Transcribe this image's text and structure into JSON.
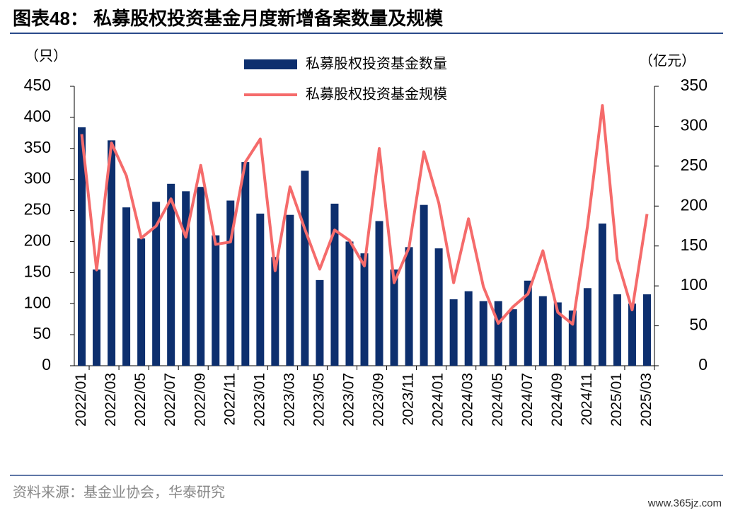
{
  "chart_data": {
    "type": "bar-line",
    "title": "图表48：  私募股权投资基金月度新增备案数量及规模",
    "ylabel": "（只）",
    "y2label": "（亿元）",
    "source": "资料来源：基金业协会，华泰研究",
    "watermark": "www.365jz.com",
    "categories": [
      "2022/01",
      null,
      "2022/03",
      null,
      "2022/05",
      null,
      "2022/07",
      null,
      "2022/09",
      null,
      "2022/11",
      null,
      "2023/01",
      null,
      "2023/03",
      null,
      "2023/05",
      null,
      "2023/07",
      null,
      "2023/09",
      null,
      "2023/11",
      null,
      "2024/01",
      null,
      "2024/03",
      null,
      "2024/05",
      null,
      "2024/07",
      null,
      "2024/09",
      null,
      "2024/11",
      null,
      "2025/01",
      null,
      "2025/03"
    ],
    "series": [
      {
        "name": "私募股权投资基金数量",
        "type": "bar",
        "color": "#0d2f6e",
        "values": [
          384,
          155,
          363,
          255,
          205,
          264,
          293,
          281,
          288,
          210,
          266,
          328,
          245,
          175,
          243,
          314,
          138,
          261,
          200,
          181,
          233,
          155,
          191,
          259,
          189,
          107,
          120,
          104,
          104,
          91,
          137,
          112,
          102,
          89,
          125,
          229,
          115,
          100,
          115
        ]
      },
      {
        "name": "私募股权投资基金规模",
        "type": "line",
        "axis": "y2",
        "color": "#f56b6b",
        "values": [
          290,
          120,
          279,
          238,
          160,
          175,
          209,
          161,
          251,
          152,
          155,
          255,
          284,
          119,
          224,
          171,
          121,
          170,
          157,
          125,
          272,
          104,
          148,
          268,
          204,
          104,
          184,
          99,
          53,
          74,
          90,
          144,
          67,
          52,
          175,
          326,
          133,
          70,
          190
        ]
      }
    ],
    "ylim": [
      0,
      450
    ],
    "yticks": [
      0,
      50,
      100,
      150,
      200,
      250,
      300,
      350,
      400,
      450
    ],
    "y2lim": [
      0,
      350
    ],
    "y2ticks": [
      0,
      50,
      100,
      150,
      200,
      250,
      300,
      350
    ]
  }
}
